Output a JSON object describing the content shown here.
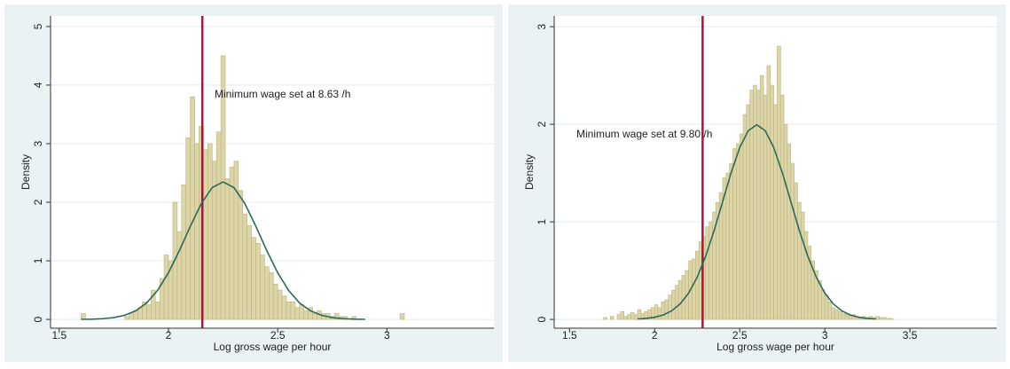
{
  "chart_data": [
    {
      "type": "histogram",
      "ylabel": "Density",
      "xlabel": "Log gross wage per hour",
      "annotation": "Minimum wage set at 8.63 /h",
      "bins": [
        1.6,
        1.62,
        1.64,
        1.66,
        1.68,
        1.7,
        1.72,
        1.74,
        1.76,
        1.78,
        1.8,
        1.82,
        1.84,
        1.86,
        1.88,
        1.9,
        1.92,
        1.94,
        1.96,
        1.98,
        2.0,
        2.02,
        2.04,
        2.06,
        2.08,
        2.1,
        2.12,
        2.14,
        2.16,
        2.18,
        2.2,
        2.22,
        2.24,
        2.26,
        2.28,
        2.3,
        2.32,
        2.34,
        2.36,
        2.38,
        2.4,
        2.42,
        2.44,
        2.46,
        2.48,
        2.5,
        2.52,
        2.54,
        2.56,
        2.58,
        2.6,
        2.62,
        2.64,
        2.66,
        2.68,
        2.7,
        2.72,
        2.74,
        2.76,
        2.78,
        2.8,
        2.82,
        2.84,
        2.86,
        2.88,
        2.9,
        2.92,
        2.94,
        2.96,
        2.98,
        3.0,
        3.02,
        3.04,
        3.06,
        3.08
      ],
      "values": [
        0.1,
        0,
        0,
        0,
        0,
        0,
        0,
        0,
        0,
        0,
        0.05,
        0.1,
        0.15,
        0.2,
        0.3,
        0.25,
        0.5,
        0.3,
        0.7,
        1.1,
        1.0,
        2.0,
        1.5,
        2.3,
        3.1,
        3.8,
        3.0,
        3.3,
        2.9,
        3.0,
        2.7,
        3.2,
        4.5,
        2.4,
        2.6,
        2.7,
        2.2,
        1.8,
        1.6,
        1.4,
        1.3,
        1.1,
        0.9,
        0.8,
        0.6,
        0.5,
        0.4,
        0.3,
        0.3,
        0.2,
        0.25,
        0.15,
        0.2,
        0.1,
        0.15,
        0.1,
        0.1,
        0.05,
        0.1,
        0.05,
        0.05,
        0,
        0.05,
        0,
        0,
        0,
        0,
        0,
        0,
        0,
        0,
        0,
        0,
        0.1
      ],
      "color": "#dcd5a8",
      "edge_color": "#bdb27c",
      "curve": {
        "color": "#2a6b58",
        "x": [
          1.6,
          1.65,
          1.7,
          1.75,
          1.8,
          1.85,
          1.9,
          1.95,
          2.0,
          2.05,
          2.1,
          2.15,
          2.2,
          2.25,
          2.3,
          2.35,
          2.4,
          2.45,
          2.5,
          2.55,
          2.6,
          2.65,
          2.7,
          2.75,
          2.8,
          2.85,
          2.9
        ],
        "values": [
          0.0016,
          0.0046,
          0.0126,
          0.031,
          0.071,
          0.147,
          0.282,
          0.495,
          0.797,
          1.175,
          1.59,
          1.975,
          2.25,
          2.347,
          2.25,
          1.975,
          1.59,
          1.175,
          0.797,
          0.495,
          0.282,
          0.147,
          0.071,
          0.031,
          0.0126,
          0.0046,
          0.0016
        ]
      },
      "vline": {
        "value": 2.155,
        "color": "#b5103c"
      },
      "xlim": [
        1.46,
        3.49
      ],
      "ylim": [
        -0.15,
        5.18
      ],
      "xticks": [
        1.5,
        2,
        2.5,
        3
      ],
      "yticks": [
        0,
        1,
        2,
        3,
        4,
        5
      ],
      "grid": true
    },
    {
      "type": "histogram",
      "ylabel": "Density",
      "xlabel": "Log gross wage per hour",
      "annotation": "Minimum wage set at 9.80 /h",
      "bins": [
        1.7,
        1.72,
        1.74,
        1.76,
        1.78,
        1.8,
        1.82,
        1.84,
        1.86,
        1.88,
        1.9,
        1.92,
        1.94,
        1.96,
        1.98,
        2.0,
        2.02,
        2.04,
        2.06,
        2.08,
        2.1,
        2.12,
        2.14,
        2.16,
        2.18,
        2.2,
        2.22,
        2.24,
        2.26,
        2.28,
        2.3,
        2.32,
        2.34,
        2.36,
        2.38,
        2.4,
        2.42,
        2.44,
        2.46,
        2.48,
        2.5,
        2.52,
        2.54,
        2.56,
        2.58,
        2.6,
        2.62,
        2.64,
        2.66,
        2.68,
        2.7,
        2.72,
        2.74,
        2.76,
        2.78,
        2.8,
        2.82,
        2.84,
        2.86,
        2.88,
        2.9,
        2.92,
        2.94,
        2.96,
        2.98,
        3.0,
        3.02,
        3.04,
        3.06,
        3.08,
        3.1,
        3.12,
        3.14,
        3.16,
        3.18,
        3.2,
        3.22,
        3.24,
        3.26,
        3.28,
        3.3,
        3.32,
        3.34,
        3.36,
        3.38,
        3.4
      ],
      "values": [
        0.02,
        0,
        0.03,
        0,
        0.05,
        0.08,
        0.03,
        0.05,
        0.07,
        0.05,
        0.1,
        0.06,
        0.08,
        0.1,
        0.12,
        0.15,
        0.12,
        0.18,
        0.2,
        0.25,
        0.3,
        0.35,
        0.4,
        0.45,
        0.5,
        0.6,
        0.62,
        0.7,
        0.8,
        0.85,
        0.95,
        1.0,
        1.1,
        1.2,
        1.3,
        1.45,
        1.5,
        1.6,
        1.75,
        1.8,
        1.9,
        2.1,
        2.2,
        2.35,
        2.4,
        2.35,
        2.5,
        2.3,
        2.6,
        2.4,
        2.2,
        2.8,
        2.3,
        2.0,
        1.8,
        1.6,
        1.4,
        1.2,
        1.1,
        0.9,
        0.75,
        0.6,
        0.5,
        0.4,
        0.3,
        0.25,
        0.18,
        0.12,
        0.1,
        0.08,
        0.06,
        0.05,
        0.04,
        0.05,
        0.03,
        0.02,
        0.03,
        0.02,
        0.03,
        0.02,
        0.03,
        0.02,
        0.02,
        0.01,
        0.01
      ],
      "color": "#dcd5a8",
      "edge_color": "#bdb27c",
      "curve": {
        "color": "#2a6b58",
        "x": [
          1.9,
          1.95,
          2.0,
          2.05,
          2.1,
          2.15,
          2.2,
          2.25,
          2.3,
          2.35,
          2.4,
          2.45,
          2.5,
          2.55,
          2.6,
          2.65,
          2.7,
          2.75,
          2.8,
          2.85,
          2.9,
          2.95,
          3.0,
          3.05,
          3.1,
          3.15,
          3.2,
          3.25,
          3.3
        ],
        "values": [
          0.0044,
          0.0102,
          0.0222,
          0.0455,
          0.0876,
          0.159,
          0.27,
          0.432,
          0.648,
          0.913,
          1.21,
          1.506,
          1.761,
          1.934,
          1.995,
          1.934,
          1.761,
          1.506,
          1.21,
          0.913,
          0.648,
          0.432,
          0.27,
          0.159,
          0.0876,
          0.0455,
          0.0222,
          0.0102,
          0.0044
        ]
      },
      "vline": {
        "value": 2.282,
        "color": "#b5103c"
      },
      "xlim": [
        1.41,
        4.01
      ],
      "ylim": [
        -0.09,
        3.11
      ],
      "xticks": [
        1.5,
        2,
        2.5,
        3,
        3.5
      ],
      "yticks": [
        0,
        1,
        2,
        3
      ],
      "grid": true
    }
  ]
}
